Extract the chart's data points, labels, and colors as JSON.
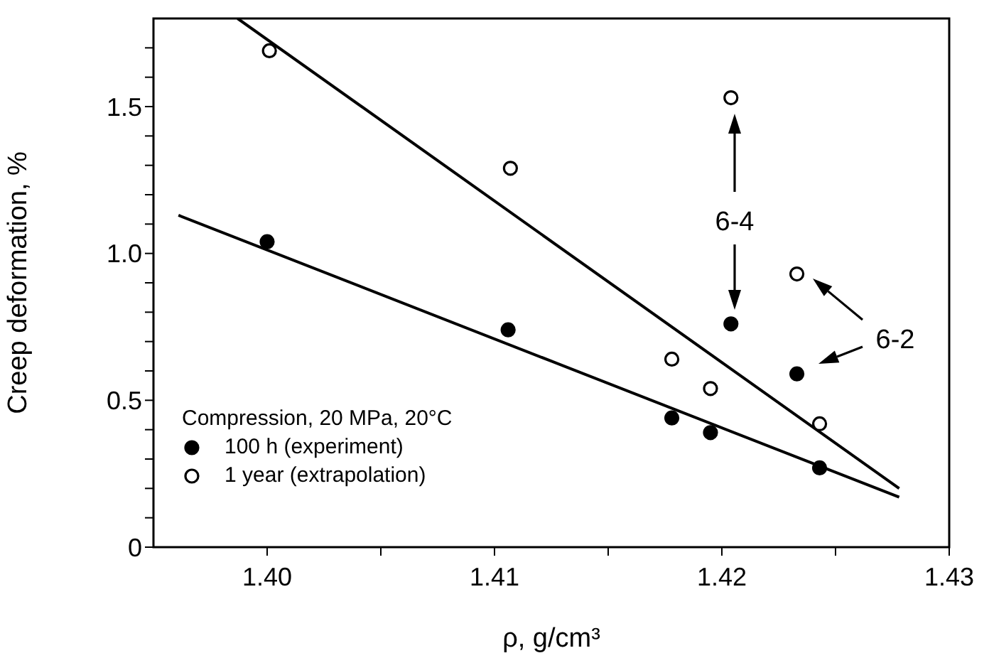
{
  "chart_data": {
    "type": "scatter",
    "xlabel": "ρ,  g/cm³",
    "ylabel": "Creep deformation, %",
    "legend_title": "Compression, 20 MPa, 20°C",
    "xlim": [
      1.395,
      1.43
    ],
    "xticks": [
      {
        "value": 1.4,
        "label": "1.40"
      },
      {
        "value": 1.405,
        "label": null
      },
      {
        "value": 1.41,
        "label": "1.41"
      },
      {
        "value": 1.415,
        "label": null
      },
      {
        "value": 1.42,
        "label": "1.42"
      },
      {
        "value": 1.425,
        "label": null
      },
      {
        "value": 1.43,
        "label": "1.43"
      }
    ],
    "ylim": [
      0,
      1.8
    ],
    "yticks": [
      0,
      {
        "value": 0.1,
        "label": null
      },
      {
        "value": 0.2,
        "label": null
      },
      {
        "value": 0.3,
        "label": null
      },
      {
        "value": 0.4,
        "label": null
      },
      0.5,
      {
        "value": 0.6,
        "label": null
      },
      {
        "value": 0.7,
        "label": null
      },
      {
        "value": 0.8,
        "label": null
      },
      {
        "value": 0.9,
        "label": null
      },
      {
        "value": 1,
        "label": "1.0"
      },
      {
        "value": 1.1,
        "label": null
      },
      {
        "value": 1.2,
        "label": null
      },
      {
        "value": 1.3,
        "label": null
      },
      {
        "value": 1.4,
        "label": null
      },
      1.5,
      {
        "value": 1.6,
        "label": null
      },
      {
        "value": 1.7,
        "label": null
      }
    ],
    "grid": false,
    "legend": "bottom left",
    "marker": "circle",
    "series": [
      {
        "name": "100 h (experiment)",
        "color": "#000000",
        "x": [
          1.4,
          1.4106,
          1.4178,
          1.4195,
          1.4204,
          1.4233,
          1.4243
        ],
        "values": [
          1.04,
          0.74,
          0.44,
          0.39,
          0.76,
          0.59,
          0.27
        ]
      },
      {
        "name": "1 year (extrapolation)",
        "color": "#000000",
        "x": [
          1.4001,
          1.4107,
          1.4178,
          1.4195,
          1.4204,
          1.4233,
          1.4243
        ],
        "values": [
          1.69,
          1.29,
          0.64,
          0.54,
          1.53,
          0.93,
          0.42
        ]
      },
      {
        "type": "line",
        "color": "#000000",
        "marker": "none",
        "line_style": "solid",
        "x": [
          1.3961,
          1.4278
        ],
        "values": [
          1.13,
          0.17
        ]
      },
      {
        "type": "line",
        "color": "#000000",
        "marker": "none",
        "line_style": "solid",
        "x": [
          1.3987,
          1.4278
        ],
        "values": [
          1.8,
          0.2
        ]
      }
    ],
    "annotations": [
      "6-4",
      "6-2"
    ]
  }
}
